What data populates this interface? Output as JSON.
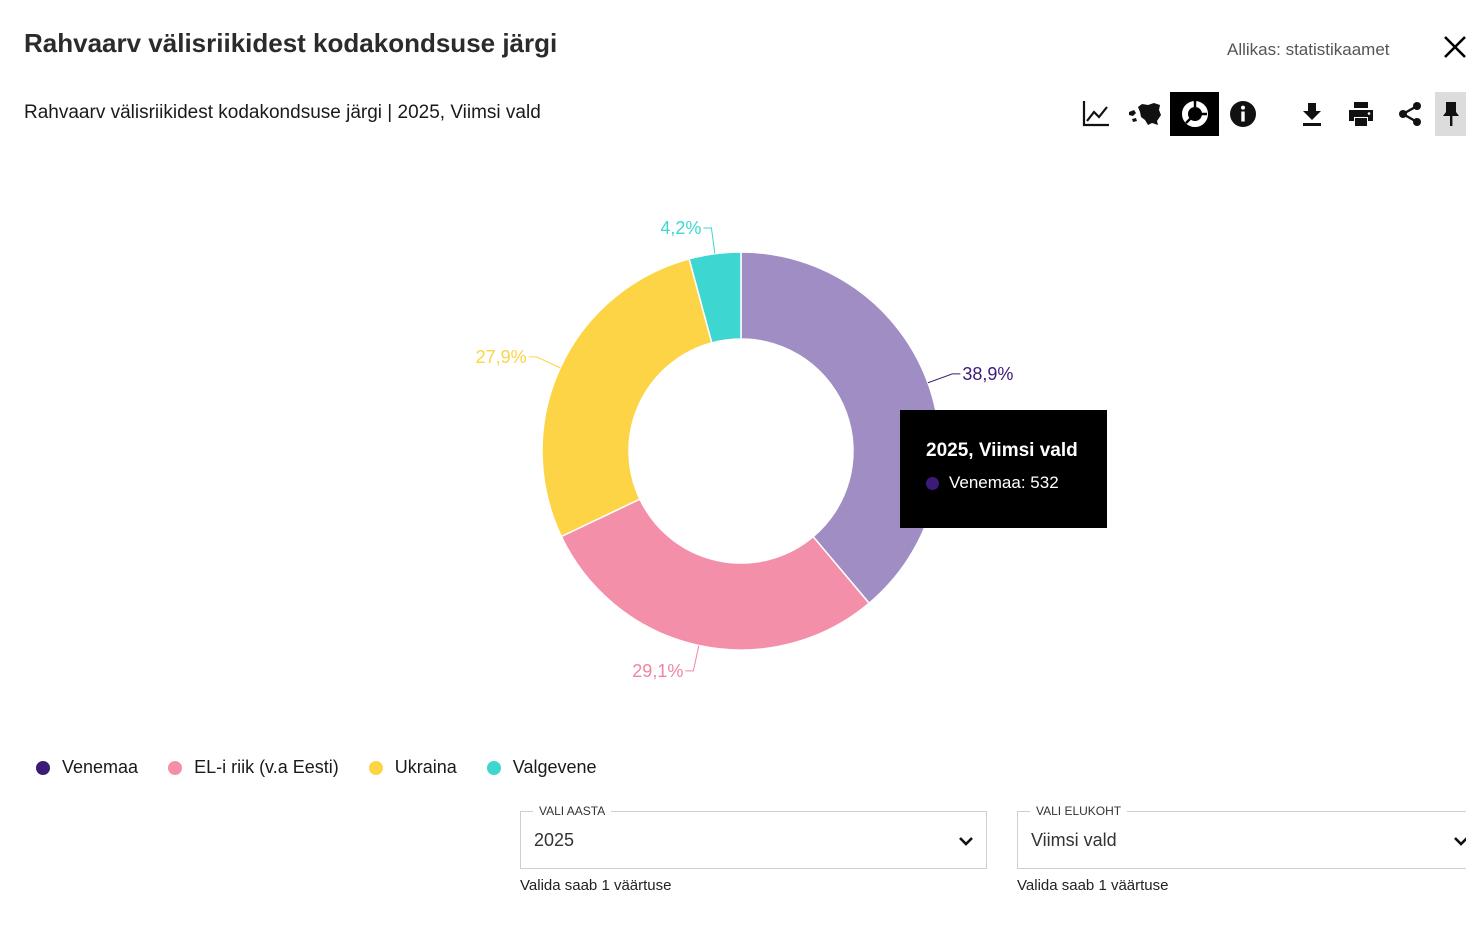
{
  "header": {
    "title": "Rahvaarv välisriikidest kodakondsuse järgi",
    "source": "Allikas: statistikaamet",
    "subtitle": "Rahvaarv välisriikidest kodakondsuse järgi | 2025, Viimsi vald"
  },
  "toolbar": {
    "items": [
      "line-chart-icon",
      "estonia-map-icon",
      "donut-chart-icon",
      "info-icon",
      "download-icon",
      "print-icon",
      "share-icon",
      "pin-icon"
    ],
    "active": "donut-chart-icon"
  },
  "chart_data": {
    "type": "pie",
    "donut": true,
    "categories": [
      "Venemaa",
      "EL-i riik (v.a Eesti)",
      "Ukraina",
      "Valgevene"
    ],
    "values": [
      38.9,
      29.1,
      27.9,
      4.2
    ],
    "labels": [
      "38,9%",
      "29,1%",
      "27,9%",
      "4,2%"
    ],
    "colors": [
      "#9f8dc3",
      "#f48fa9",
      "#fdd446",
      "#3dd6d0"
    ],
    "legend_colors": [
      "#3b1a78",
      "#f48fa9",
      "#fdd446",
      "#3dd6d0"
    ],
    "label_colors": [
      "#3b1a78",
      "#ee86a0",
      "#fdd446",
      "#3dd6d0"
    ],
    "legend_position": "bottom-left"
  },
  "tooltip": {
    "title": "2025, Viimsi vald",
    "series_color": "#3b1a78",
    "text": "Venemaa: 532"
  },
  "filters": {
    "year": {
      "label": "VALI AASTA",
      "value": "2025",
      "hint": "Valida saab 1 väärtuse"
    },
    "place": {
      "label": "VALI ELUKOHT",
      "value": "Viimsi vald",
      "hint": "Valida saab 1 väärtuse"
    }
  }
}
